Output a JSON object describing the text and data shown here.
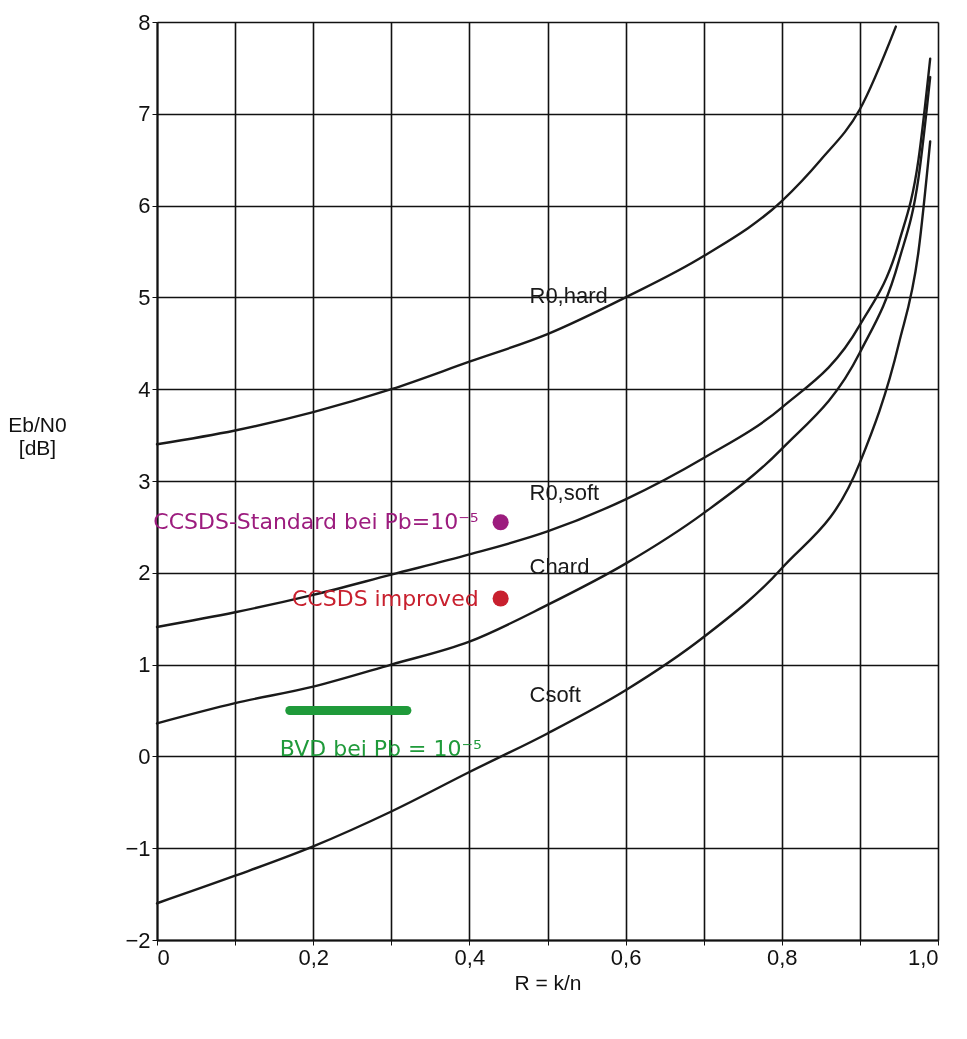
{
  "chart_data": {
    "type": "line",
    "xlabel": "R = k/n",
    "ylabel": "Eb/N0 [dB]",
    "xlim": [
      0,
      1
    ],
    "ylim": [
      -2,
      8
    ],
    "xticks": [
      0,
      {
        "value": 0.1,
        "label": null
      },
      {
        "value": 0.2,
        "label": "0,2"
      },
      {
        "value": 0.3,
        "label": null
      },
      {
        "value": 0.4,
        "label": "0,4"
      },
      {
        "value": 0.5,
        "label": null
      },
      {
        "value": 0.6,
        "label": "0,6"
      },
      {
        "value": 0.7,
        "label": null
      },
      {
        "value": 0.8,
        "label": "0,8"
      },
      {
        "value": 0.9,
        "label": null
      },
      {
        "value": 1,
        "label": "1,0"
      }
    ],
    "yticks": [
      {
        "value": -2,
        "label": "−2"
      },
      {
        "value": -1,
        "label": "−1"
      },
      0,
      1,
      2,
      3,
      4,
      5,
      6,
      7,
      8
    ],
    "grid": true,
    "marker": "none",
    "line_style": "solid",
    "series": [
      {
        "name": "R0,hard",
        "color": "#1a1a1a",
        "x": [
          0,
          0.1,
          0.2,
          0.3,
          0.4,
          0.5,
          0.6,
          0.7,
          0.8,
          0.85,
          0.9,
          0.946
        ],
        "values": [
          3.4,
          3.55,
          3.75,
          4.0,
          4.3,
          4.6,
          5.0,
          5.45,
          6.05,
          6.5,
          7.05,
          7.95
        ]
      },
      {
        "name": "R0,soft",
        "color": "#1a1a1a",
        "x": [
          0,
          0.1,
          0.2,
          0.3,
          0.4,
          0.5,
          0.6,
          0.7,
          0.8,
          0.9,
          0.95,
          0.975,
          0.99
        ],
        "values": [
          1.41,
          1.57,
          1.76,
          1.98,
          2.2,
          2.45,
          2.8,
          3.25,
          3.8,
          4.7,
          5.6,
          6.5,
          7.6
        ]
      },
      {
        "name": "Chard",
        "color": "#1a1a1a",
        "x": [
          0,
          0.1,
          0.2,
          0.3,
          0.4,
          0.5,
          0.6,
          0.7,
          0.8,
          0.9,
          0.95,
          0.975,
          0.99
        ],
        "values": [
          0.36,
          0.58,
          0.76,
          1.0,
          1.25,
          1.65,
          2.1,
          2.65,
          3.35,
          4.4,
          5.4,
          6.3,
          7.4
        ]
      },
      {
        "name": "Csoft",
        "color": "#1a1a1a",
        "x": [
          0,
          0.1,
          0.2,
          0.3,
          0.4,
          0.5,
          0.6,
          0.7,
          0.8,
          0.9,
          0.95,
          0.975,
          0.99
        ],
        "values": [
          -1.6,
          -1.3,
          -0.98,
          -0.6,
          -0.17,
          0.25,
          0.72,
          1.3,
          2.05,
          3.2,
          4.5,
          5.5,
          6.7
        ]
      },
      {
        "name": "CCSDS-Standard bei Pb=10⁻⁵",
        "type": "scatter",
        "marker": "circle",
        "color": "#9c1c7e",
        "x": [
          0.44
        ],
        "values": [
          2.55
        ]
      },
      {
        "name": "CCSDS improved",
        "type": "scatter",
        "marker": "circle",
        "color": "#c8202e",
        "x": [
          0.44
        ],
        "values": [
          1.72
        ]
      },
      {
        "name": "BVD bei Pb = 10⁻⁵",
        "color": "#1f9a3a",
        "x": [
          0.17,
          0.32
        ],
        "values": [
          0.5,
          0.5
        ]
      }
    ]
  }
}
